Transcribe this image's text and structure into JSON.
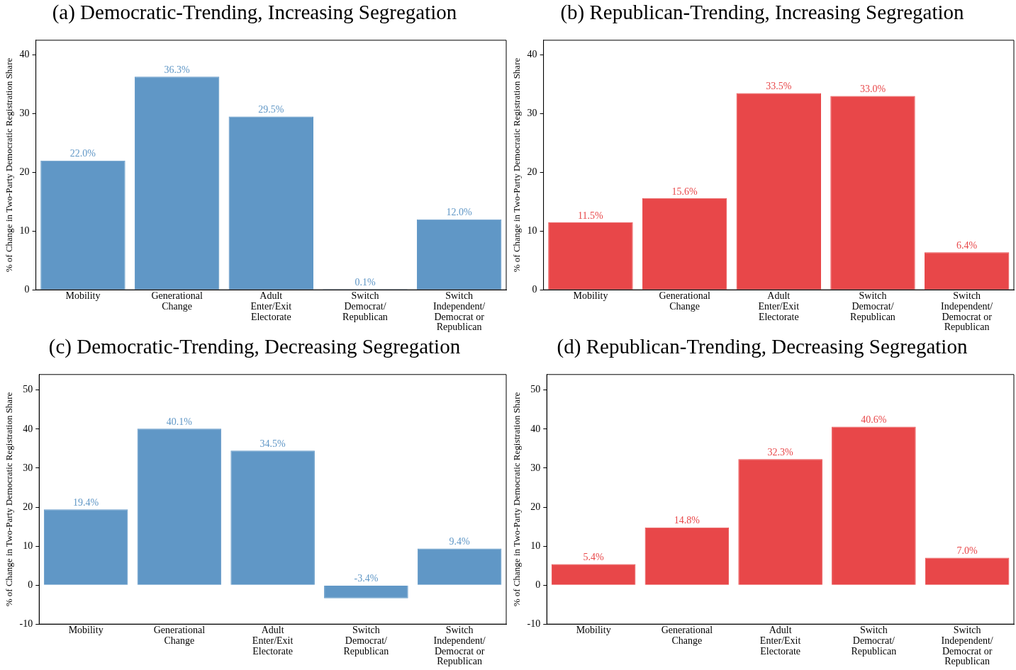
{
  "chart_data": [
    {
      "type": "bar",
      "title": "(a) Democratic-Trending, Increasing Segregation",
      "ylabel": "% of Change in Two-Party Democratic Registration Share",
      "categories": [
        "Mobility",
        "Generational Change",
        "Adult Enter/Exit Electorate",
        "Switch Democrat/ Republican",
        "Switch Independent/ Democrat or Republican"
      ],
      "values": [
        22.0,
        36.3,
        29.5,
        0.1,
        12.0
      ],
      "value_labels": [
        "22.0%",
        "36.3%",
        "29.5%",
        "0.1%",
        "12.0%"
      ],
      "color": "#6097c6",
      "ylim": [
        0,
        42.5
      ],
      "yticks": [
        0,
        10,
        20,
        30,
        40
      ]
    },
    {
      "type": "bar",
      "title": "(b) Republican-Trending, Increasing Segregation",
      "ylabel": "% of Change in Two-Party Democratic Registration Share",
      "categories": [
        "Mobility",
        "Generational Change",
        "Adult Enter/Exit Electorate",
        "Switch Democrat/ Republican",
        "Switch Independent/ Democrat or Republican"
      ],
      "values": [
        11.5,
        15.6,
        33.5,
        33.0,
        6.4
      ],
      "value_labels": [
        "11.5%",
        "15.6%",
        "33.5%",
        "33.0%",
        "6.4%"
      ],
      "color": "#e84749",
      "ylim": [
        0,
        42.5
      ],
      "yticks": [
        0,
        10,
        20,
        30,
        40
      ]
    },
    {
      "type": "bar",
      "title": "(c) Democratic-Trending, Decreasing Segregation",
      "ylabel": "% of Change in Two-Party Democratic Registration Share",
      "categories": [
        "Mobility",
        "Generational Change",
        "Adult Enter/Exit Electorate",
        "Switch Democrat/ Republican",
        "Switch Independent/ Democrat or Republican"
      ],
      "values": [
        19.4,
        40.1,
        34.5,
        -3.4,
        9.4
      ],
      "value_labels": [
        "19.4%",
        "40.1%",
        "34.5%",
        "-3.4%",
        "9.4%"
      ],
      "color": "#6097c6",
      "ylim": [
        -10,
        54
      ],
      "yticks": [
        -10,
        0,
        10,
        20,
        30,
        40,
        50
      ]
    },
    {
      "type": "bar",
      "title": "(d) Republican-Trending, Decreasing Segregation",
      "ylabel": "% of Change in Two-Party Democratic Registration Share",
      "categories": [
        "Mobility",
        "Generational Change",
        "Adult Enter/Exit Electorate",
        "Switch Democrat/ Republican",
        "Switch Independent/ Democrat or Republican"
      ],
      "values": [
        5.4,
        14.8,
        32.3,
        40.6,
        7.0
      ],
      "value_labels": [
        "5.4%",
        "14.8%",
        "32.3%",
        "40.6%",
        "7.0%"
      ],
      "color": "#e84749",
      "ylim": [
        -10,
        54
      ],
      "yticks": [
        -10,
        0,
        10,
        20,
        30,
        40,
        50
      ]
    }
  ]
}
